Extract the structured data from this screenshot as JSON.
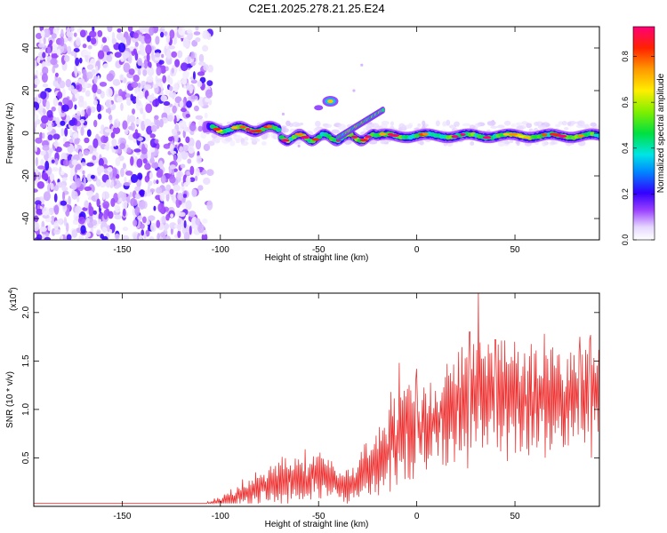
{
  "figure_title": "C2E1.2025.278.21.25.E24",
  "chart_data": [
    {
      "type": "heatmap",
      "title": "C2E1.2025.278.21.25.E24",
      "xlabel": "Height of straight line (km)",
      "ylabel": "Frequency (Hz)",
      "xlim": [
        -195,
        93
      ],
      "ylim": [
        -50,
        50
      ],
      "x_ticks": [
        -150,
        -100,
        -50,
        0,
        50
      ],
      "y_ticks": [
        -40,
        -20,
        0,
        20,
        40
      ],
      "colorbar": {
        "label": "Normalized spectral amplitude",
        "range": [
          0,
          0.93
        ],
        "ticks": [
          0.0,
          0.2,
          0.4,
          0.6,
          0.8
        ],
        "tick_labels": [
          "0.0",
          "0.2",
          "0.4",
          "0.6",
          "0.8"
        ]
      },
      "noise_region_km": [
        -195,
        -105
      ],
      "main_ridge": {
        "frequency_hz": 0,
        "from_km": -108,
        "to_km": 93,
        "peak_amplitude": 0.93
      },
      "secondary_features": [
        {
          "name": "upward branch",
          "from_km": -40,
          "to_km": -17,
          "freq_from_hz": -2,
          "freq_to_hz": 11
        },
        {
          "name": "isolated blob",
          "x_km": -44,
          "freq_hz": 15,
          "amplitude": 0.7
        },
        {
          "name": "weak blob",
          "x_km": -50,
          "freq_hz": 12,
          "amplitude": 0.15
        }
      ]
    },
    {
      "type": "line",
      "xlabel": "Height of straight line (km)",
      "ylabel": "SNR (10 * v/v)",
      "y_multiplier_label": "(x10",
      "y_multiplier_exp": "4",
      "y_multiplier_close": ")",
      "xlim": [
        -195,
        93
      ],
      "ylim": [
        0,
        2.2
      ],
      "x_ticks": [
        -150,
        -100,
        -50,
        0,
        50
      ],
      "y_ticks": [
        0.5,
        1.0,
        1.5,
        2.0
      ],
      "y_tick_labels": [
        "0.5",
        "1.0",
        "1.5",
        "2.0"
      ],
      "series": [
        {
          "name": "SNR",
          "color": "#ee3333",
          "envelope": {
            "x": [
              -195,
              -110,
              -100,
              -90,
              -80,
              -70,
              -60,
              -50,
              -45,
              -40,
              -35,
              -30,
              -25,
              -20,
              -15,
              -10,
              -5,
              0,
              5,
              10,
              20,
              25,
              30,
              35,
              40,
              50,
              60,
              70,
              80,
              90,
              93
            ],
            "mean": [
              0.01,
              0.01,
              0.04,
              0.12,
              0.18,
              0.25,
              0.3,
              0.3,
              0.28,
              0.22,
              0.2,
              0.28,
              0.38,
              0.5,
              0.6,
              0.72,
              0.78,
              0.8,
              0.85,
              0.9,
              1.0,
              1.05,
              1.12,
              1.15,
              1.15,
              1.12,
              1.08,
              1.05,
              1.1,
              1.15,
              1.2
            ],
            "spread": [
              0.003,
              0.004,
              0.05,
              0.1,
              0.14,
              0.18,
              0.2,
              0.22,
              0.2,
              0.16,
              0.16,
              0.2,
              0.25,
              0.3,
              0.35,
              0.38,
              0.4,
              0.4,
              0.4,
              0.4,
              0.45,
              0.48,
              0.5,
              0.5,
              0.5,
              0.48,
              0.45,
              0.45,
              0.45,
              0.45,
              0.45
            ]
          },
          "peaks": [
            {
              "x": 31.5,
              "y": 2.2
            },
            {
              "x": 27.0,
              "y": 1.8
            },
            {
              "x": -9.0,
              "y": 1.48
            },
            {
              "x": -13.0,
              "y": 1.18
            },
            {
              "x": 0.0,
              "y": 1.42
            },
            {
              "x": 40.0,
              "y": 1.72
            },
            {
              "x": 65.0,
              "y": 1.78
            },
            {
              "x": 83.0,
              "y": 1.75
            },
            {
              "x": 88.0,
              "y": 1.72
            }
          ]
        }
      ]
    }
  ]
}
